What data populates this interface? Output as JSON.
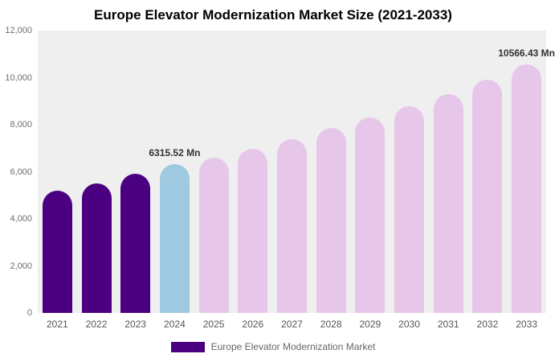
{
  "title": "Europe Elevator Modernization Market Size (2021-2033)",
  "legend": {
    "label": "Europe Elevator Modernization Market",
    "color": "#4B0082"
  },
  "colors": {
    "historical_bar": "#4B0082",
    "current_year_bar": "#9FC9E1",
    "forecast_bar": "#E7C7E9",
    "plot_background": "#efefef",
    "page_background": "#ffffff"
  },
  "chart_data": {
    "type": "bar",
    "title": "Europe Elevator Modernization Market Size (2021-2033)",
    "xlabel": "",
    "ylabel": "",
    "ylim": [
      0,
      12000
    ],
    "grid": false,
    "legend_position": "bottom",
    "categories": [
      "2021",
      "2022",
      "2023",
      "2024",
      "2025",
      "2026",
      "2027",
      "2028",
      "2029",
      "2030",
      "2031",
      "2032",
      "2033"
    ],
    "values": [
      5200,
      5500,
      5900,
      6315.52,
      6600,
      6980,
      7380,
      7850,
      8300,
      8800,
      9300,
      9900,
      10566.43
    ],
    "bar_colors": [
      "#4B0082",
      "#4B0082",
      "#4B0082",
      "#9FC9E1",
      "#E7C7E9",
      "#E7C7E9",
      "#E7C7E9",
      "#E7C7E9",
      "#E7C7E9",
      "#E7C7E9",
      "#E7C7E9",
      "#E7C7E9",
      "#E7C7E9"
    ],
    "annotations": [
      {
        "index": 3,
        "text": "6315.52 Mn"
      },
      {
        "index": 12,
        "text": "10566.43 Mn"
      }
    ],
    "yticks": [
      {
        "label": "12,000",
        "value": 12000
      },
      {
        "label": "10,000",
        "value": 10000
      },
      {
        "label": "8,000",
        "value": 8000
      },
      {
        "label": "6,000",
        "value": 6000
      },
      {
        "label": "4,000",
        "value": 4000
      },
      {
        "label": "2,000",
        "value": 2000
      },
      {
        "label": "0",
        "value": 0
      }
    ]
  }
}
